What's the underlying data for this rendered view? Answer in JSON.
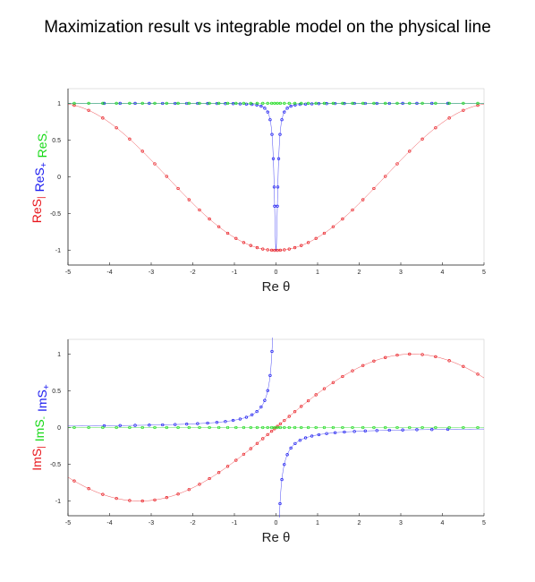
{
  "title": "Maximization result vs integrable model on the physical line",
  "colors": {
    "red": "#e8151b",
    "blue": "#1a1af0",
    "green": "#16d916",
    "axis": "#222222"
  },
  "chart_data": [
    {
      "type": "scatter",
      "xlabel": "Re θ",
      "ylabel_parts": [
        {
          "text": "ReS",
          "sub": "|",
          "color": "red"
        },
        {
          "text": "ReS",
          "sub": "+",
          "color": "blue"
        },
        {
          "text": "ReS",
          "sub": "-",
          "color": "green"
        }
      ],
      "xlim": [
        -5,
        5
      ],
      "ylim": [
        -1.2,
        1.2
      ],
      "xticks": [
        -5,
        -4,
        -3,
        -2,
        -1,
        0,
        1,
        2,
        3,
        4,
        5
      ],
      "yticks": [
        -1,
        -0.5,
        0,
        0.5,
        1
      ],
      "ytick_labels": [
        "-1",
        "-0.5",
        "0",
        "0.5",
        "1"
      ],
      "series": [
        {
          "color": "red",
          "curve": "real_red",
          "markers": "real_red"
        },
        {
          "color": "blue",
          "curve": "real_blue",
          "markers": "real_blue"
        },
        {
          "color": "green",
          "curve": "real_green",
          "markers": "real_green"
        }
      ]
    },
    {
      "type": "scatter",
      "xlabel": "Re θ",
      "ylabel_parts": [
        {
          "text": "ImS",
          "sub": "|",
          "color": "red"
        },
        {
          "text": "ImS",
          "sub": "-",
          "color": "green"
        },
        {
          "text": "ImS",
          "sub": "+",
          "color": "blue"
        }
      ],
      "xlim": [
        -5,
        5
      ],
      "ylim": [
        -1.2,
        1.2
      ],
      "xticks": [
        -5,
        -4,
        -3,
        -2,
        -1,
        0,
        1,
        2,
        3,
        4,
        5
      ],
      "yticks": [
        -1,
        -0.5,
        0,
        0.5,
        1
      ],
      "ytick_labels": [
        "-1",
        "-0.5",
        "0",
        "0.5",
        "1"
      ],
      "series": [
        {
          "color": "red",
          "curve": "imag_red",
          "markers": "imag_red"
        },
        {
          "color": "blue",
          "curve": "imag_blue",
          "markers": "imag_blue"
        },
        {
          "color": "green",
          "curve": "imag_green",
          "markers": "imag_green"
        }
      ]
    }
  ]
}
